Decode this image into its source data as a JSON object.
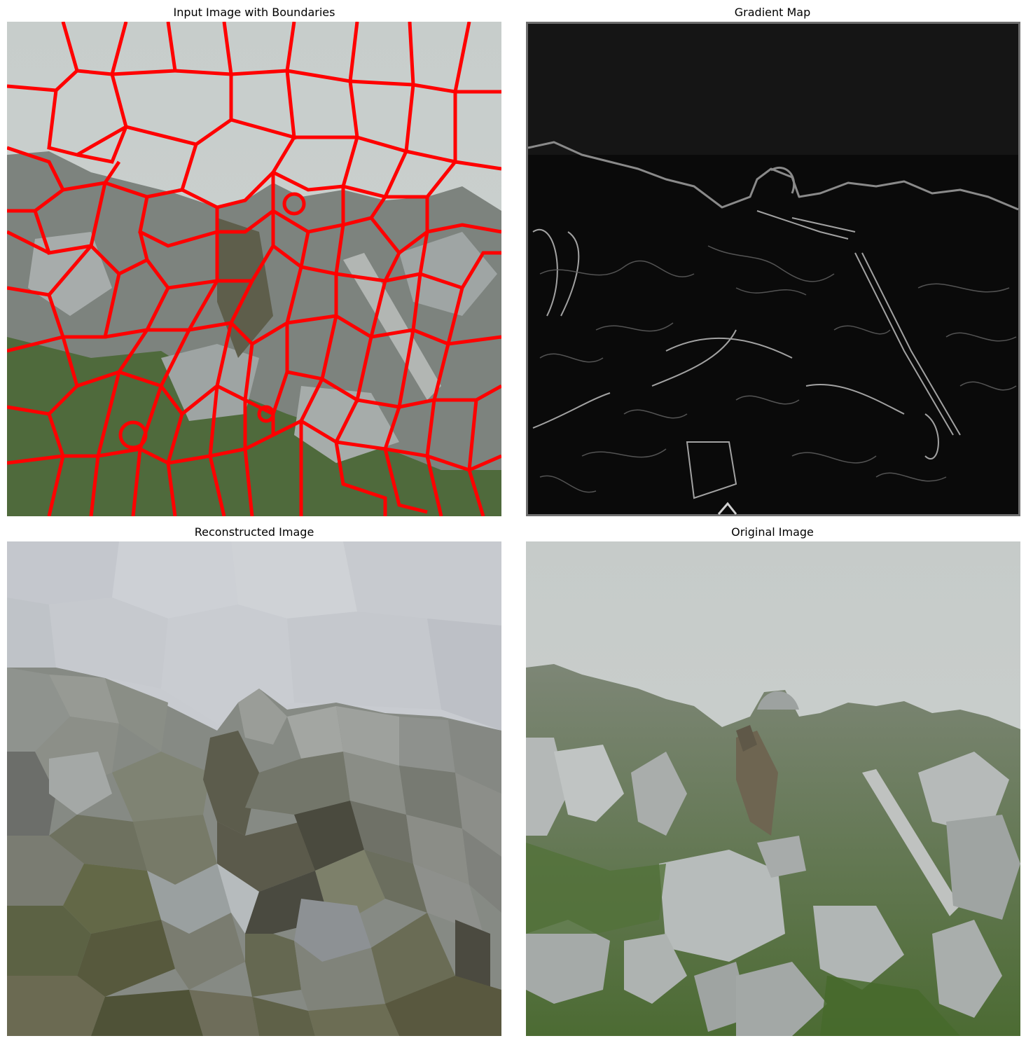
{
  "figure": {
    "panels": [
      {
        "id": "boundaries",
        "title": "Input Image with Boundaries",
        "image": "foggy rocky hillside photo with red superpixel boundary overlay"
      },
      {
        "id": "gradient",
        "title": "Gradient Map",
        "image": "grayscale edge gradient map on black"
      },
      {
        "id": "reconstructed",
        "title": "Reconstructed Image",
        "image": "flat-color superpixel reconstruction"
      },
      {
        "id": "original",
        "title": "Original Image",
        "image": "foggy rocky hillside with bird and grass"
      }
    ]
  },
  "colors": {
    "boundary": "#ff0000",
    "sky": "#c9cfcd",
    "gradient_bg": "#141414",
    "grass": "#4d6b3a",
    "rock": "#9a9f9c"
  }
}
